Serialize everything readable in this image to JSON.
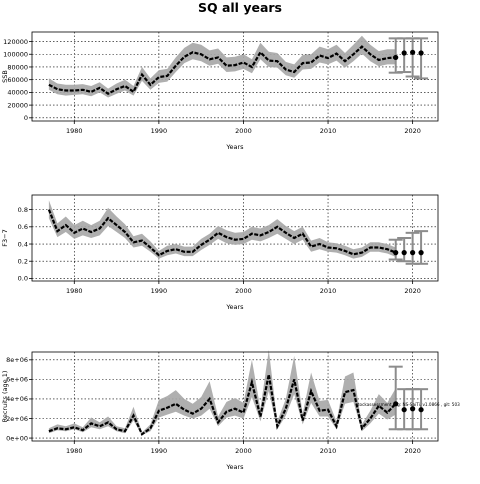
{
  "figure": {
    "title": "SQ all years"
  },
  "chart_data": [
    {
      "type": "line",
      "ylabel": "SSB",
      "xlabel": "Years",
      "xlim": [
        1975,
        2023
      ],
      "ylim": [
        -5000,
        135000
      ],
      "grid": true,
      "x_ticks": [
        1980,
        1990,
        2000,
        2010,
        2020
      ],
      "y_ticks": [
        0,
        20000,
        40000,
        60000,
        80000,
        100000,
        120000
      ],
      "y_tick_labels": [
        "0",
        "20000",
        "40000",
        "60000",
        "80000",
        "100000",
        "120000"
      ],
      "x": [
        1977,
        1978,
        1979,
        1980,
        1981,
        1982,
        1983,
        1984,
        1985,
        1986,
        1987,
        1988,
        1989,
        1990,
        1991,
        1992,
        1993,
        1994,
        1995,
        1996,
        1997,
        1998,
        1999,
        2000,
        2001,
        2002,
        2003,
        2004,
        2005,
        2006,
        2007,
        2008,
        2009,
        2010,
        2011,
        2012,
        2013,
        2014,
        2015,
        2016,
        2017,
        2018
      ],
      "values": [
        52000,
        45000,
        43000,
        43000,
        44000,
        41000,
        47000,
        38000,
        45000,
        50000,
        41000,
        68000,
        52000,
        64000,
        66000,
        82000,
        96000,
        103000,
        100000,
        92000,
        95000,
        82000,
        83000,
        87000,
        80000,
        103000,
        90000,
        89000,
        76000,
        72000,
        86000,
        87000,
        98000,
        94000,
        101000,
        89000,
        100000,
        112000,
        100000,
        91000,
        94000,
        95000
      ],
      "lower": [
        44000,
        37000,
        35000,
        36000,
        37000,
        34000,
        40000,
        32000,
        38000,
        43000,
        35000,
        58000,
        44000,
        55000,
        57000,
        72000,
        86000,
        92000,
        89000,
        82000,
        85000,
        72000,
        73000,
        77000,
        70000,
        92000,
        80000,
        79000,
        67000,
        63000,
        76000,
        77000,
        87000,
        84000,
        90000,
        79000,
        89000,
        101000,
        89000,
        81000,
        84000,
        84000
      ],
      "upper": [
        62000,
        54000,
        52000,
        52000,
        53000,
        50000,
        56000,
        46000,
        54000,
        60000,
        50000,
        80000,
        62000,
        75000,
        77000,
        95000,
        110000,
        118000,
        115000,
        106000,
        109000,
        95000,
        96000,
        100000,
        92000,
        118000,
        104000,
        102000,
        88000,
        84000,
        99000,
        100000,
        112000,
        108000,
        115000,
        102000,
        115000,
        129000,
        115000,
        105000,
        108000,
        108000
      ],
      "forecast": [
        {
          "x": 2018,
          "median": 95000,
          "low": 71000,
          "high": 125000
        },
        {
          "x": 2019,
          "median": 102000,
          "low": 72000,
          "high": 125000
        },
        {
          "x": 2020,
          "median": 103000,
          "low": 65000,
          "high": 125000
        },
        {
          "x": 2021,
          "median": 102000,
          "low": 62000,
          "high": 125000
        }
      ]
    },
    {
      "type": "line",
      "ylabel": "F3−7",
      "xlabel": "Years",
      "xlim": [
        1975,
        2023
      ],
      "ylim": [
        -0.03,
        0.97
      ],
      "grid": true,
      "x_ticks": [
        1980,
        1990,
        2000,
        2010,
        2020
      ],
      "y_ticks": [
        0,
        0.2,
        0.4,
        0.6,
        0.8
      ],
      "y_tick_labels": [
        "0.0",
        "0.2",
        "0.4",
        "0.6",
        "0.8"
      ],
      "x": [
        1977,
        1978,
        1979,
        1980,
        1981,
        1982,
        1983,
        1984,
        1985,
        1986,
        1987,
        1988,
        1989,
        1990,
        1991,
        1992,
        1993,
        1994,
        1995,
        1996,
        1997,
        1998,
        1999,
        2000,
        2001,
        2002,
        2003,
        2004,
        2005,
        2006,
        2007,
        2008,
        2009,
        2010,
        2011,
        2012,
        2013,
        2014,
        2015,
        2016,
        2017,
        2018
      ],
      "values": [
        0.8,
        0.55,
        0.62,
        0.53,
        0.58,
        0.54,
        0.58,
        0.7,
        0.62,
        0.54,
        0.42,
        0.44,
        0.36,
        0.27,
        0.32,
        0.34,
        0.31,
        0.31,
        0.39,
        0.45,
        0.53,
        0.48,
        0.45,
        0.46,
        0.52,
        0.5,
        0.54,
        0.6,
        0.53,
        0.47,
        0.52,
        0.37,
        0.4,
        0.36,
        0.35,
        0.32,
        0.28,
        0.3,
        0.36,
        0.36,
        0.34,
        0.3
      ],
      "lower": [
        0.7,
        0.48,
        0.54,
        0.46,
        0.5,
        0.47,
        0.5,
        0.61,
        0.54,
        0.47,
        0.36,
        0.38,
        0.31,
        0.23,
        0.27,
        0.29,
        0.26,
        0.26,
        0.33,
        0.39,
        0.46,
        0.41,
        0.39,
        0.4,
        0.45,
        0.43,
        0.47,
        0.52,
        0.46,
        0.4,
        0.45,
        0.31,
        0.34,
        0.31,
        0.3,
        0.27,
        0.23,
        0.25,
        0.31,
        0.31,
        0.29,
        0.25
      ],
      "upper": [
        0.91,
        0.64,
        0.72,
        0.62,
        0.67,
        0.62,
        0.67,
        0.82,
        0.72,
        0.63,
        0.49,
        0.52,
        0.43,
        0.32,
        0.38,
        0.4,
        0.37,
        0.37,
        0.46,
        0.52,
        0.61,
        0.56,
        0.53,
        0.54,
        0.6,
        0.58,
        0.62,
        0.69,
        0.61,
        0.55,
        0.6,
        0.44,
        0.47,
        0.42,
        0.41,
        0.38,
        0.34,
        0.36,
        0.42,
        0.42,
        0.4,
        0.36
      ],
      "forecast": [
        {
          "x": 2018,
          "median": 0.3,
          "low": 0.22,
          "high": 0.45
        },
        {
          "x": 2019,
          "median": 0.3,
          "low": 0.2,
          "high": 0.47
        },
        {
          "x": 2020,
          "median": 0.3,
          "low": 0.17,
          "high": 0.53
        },
        {
          "x": 2021,
          "median": 0.3,
          "low": 0.17,
          "high": 0.55
        }
      ]
    },
    {
      "type": "line",
      "ylabel": "Recruits (age 1)",
      "xlabel": "Years",
      "xlim": [
        1975,
        2023
      ],
      "ylim": [
        -300000,
        8800000
      ],
      "grid": true,
      "x_ticks": [
        1980,
        1990,
        2000,
        2010,
        2020
      ],
      "y_ticks": [
        0,
        2000000,
        4000000,
        6000000,
        8000000
      ],
      "y_tick_labels": [
        "0e+00",
        "2e+06",
        "4e+06",
        "6e+06",
        "8e+06"
      ],
      "annotation": "stockassessment.org: NS-SaiTi, v1.0866 , git: 503",
      "x": [
        1977,
        1978,
        1979,
        1980,
        1981,
        1982,
        1983,
        1984,
        1985,
        1986,
        1987,
        1988,
        1989,
        1990,
        1991,
        1992,
        1993,
        1994,
        1995,
        1996,
        1997,
        1998,
        1999,
        2000,
        2001,
        2002,
        2003,
        2004,
        2005,
        2006,
        2007,
        2008,
        2009,
        2010,
        2011,
        2012,
        2013,
        2014,
        2015,
        2016,
        2017,
        2018
      ],
      "values": [
        700000,
        1000000,
        900000,
        1100000,
        800000,
        1500000,
        1200000,
        1600000,
        900000,
        700000,
        2300000,
        400000,
        1000000,
        2800000,
        3100000,
        3500000,
        2900000,
        2500000,
        3000000,
        4000000,
        1600000,
        2700000,
        3000000,
        2600000,
        5700000,
        2200000,
        6500000,
        1200000,
        3000000,
        6000000,
        1800000,
        4800000,
        2800000,
        2900000,
        1200000,
        4700000,
        4900000,
        1000000,
        2000000,
        3300000,
        2600000,
        3500000
      ],
      "lower": [
        500000,
        800000,
        700000,
        900000,
        600000,
        1100000,
        900000,
        1200000,
        700000,
        500000,
        1800000,
        300000,
        700000,
        2100000,
        2400000,
        2700000,
        2300000,
        2000000,
        2300000,
        3000000,
        1200000,
        2100000,
        2300000,
        2000000,
        4200000,
        1700000,
        4800000,
        900000,
        2300000,
        4500000,
        1400000,
        3600000,
        2200000,
        2200000,
        900000,
        3500000,
        3700000,
        700000,
        1500000,
        2500000,
        1900000,
        2400000
      ],
      "upper": [
        1000000,
        1400000,
        1200000,
        1500000,
        1100000,
        2100000,
        1600000,
        2200000,
        1200000,
        1000000,
        3200000,
        600000,
        1400000,
        3900000,
        4300000,
        4900000,
        4000000,
        3500000,
        4200000,
        5800000,
        2200000,
        3700000,
        4100000,
        3600000,
        8000000,
        3000000,
        9000000,
        1700000,
        4000000,
        8400000,
        2500000,
        6700000,
        3800000,
        3900000,
        1700000,
        6300000,
        6700000,
        1400000,
        2800000,
        4500000,
        3600000,
        5100000
      ],
      "forecast": [
        {
          "x": 2018,
          "median": 3500000,
          "low": 900000,
          "high": 7300000
        },
        {
          "x": 2019,
          "median": 2900000,
          "low": 900000,
          "high": 5000000
        },
        {
          "x": 2020,
          "median": 3000000,
          "low": 900000,
          "high": 5000000
        },
        {
          "x": 2021,
          "median": 2900000,
          "low": 900000,
          "high": 5000000
        }
      ]
    }
  ]
}
